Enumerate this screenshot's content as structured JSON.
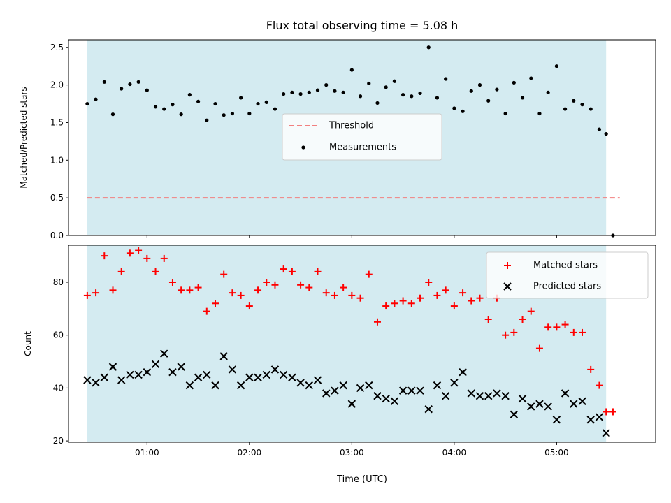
{
  "chart_data": [
    {
      "type": "scatter",
      "title": "Flux total observing time = 5.08 h",
      "ylabel": "Matched/Predicted stars",
      "xlabel": "",
      "ylim": [
        0,
        2.6
      ],
      "y_ticks": [
        0.0,
        0.5,
        1.0,
        1.5,
        2.0,
        2.5
      ],
      "y_tick_labels": [
        "0.0",
        "0.5",
        "1.0",
        "1.5",
        "2.0",
        "2.5"
      ],
      "legend": {
        "placement": "center",
        "entries": [
          "Threshold",
          "Measurements"
        ]
      },
      "threshold": {
        "name": "Threshold",
        "value": 0.5,
        "x_start": "00:25",
        "x_end": "05:37",
        "color": "#f28080"
      },
      "shaded_interval": {
        "start": "00:25",
        "end": "05:29",
        "color": "#d4ebf1"
      },
      "series": [
        {
          "name": "Measurements",
          "x": [
            "00:25",
            "00:30",
            "00:35",
            "00:40",
            "00:45",
            "00:50",
            "00:55",
            "01:00",
            "01:05",
            "01:10",
            "01:15",
            "01:20",
            "01:25",
            "01:30",
            "01:35",
            "01:40",
            "01:45",
            "01:50",
            "01:55",
            "02:00",
            "02:05",
            "02:10",
            "02:15",
            "02:20",
            "02:25",
            "02:30",
            "02:35",
            "02:40",
            "02:45",
            "02:50",
            "02:55",
            "03:00",
            "03:05",
            "03:10",
            "03:15",
            "03:20",
            "03:25",
            "03:30",
            "03:35",
            "03:40",
            "03:45",
            "03:50",
            "03:55",
            "04:00",
            "04:05",
            "04:10",
            "04:15",
            "04:20",
            "04:25",
            "04:30",
            "04:35",
            "04:40",
            "04:45",
            "04:50",
            "04:55",
            "05:00",
            "05:05",
            "05:10",
            "05:15",
            "05:20",
            "05:25",
            "05:29",
            "05:33"
          ],
          "y": [
            1.75,
            1.81,
            2.04,
            1.61,
            1.95,
            2.01,
            2.04,
            1.93,
            1.71,
            1.68,
            1.74,
            1.61,
            1.87,
            1.78,
            1.53,
            1.75,
            1.6,
            1.62,
            1.83,
            1.62,
            1.75,
            1.77,
            1.68,
            1.88,
            1.9,
            1.88,
            1.9,
            1.93,
            2.0,
            1.92,
            1.9,
            2.2,
            1.85,
            2.02,
            1.76,
            1.97,
            2.05,
            1.87,
            1.85,
            1.89,
            2.5,
            1.83,
            2.08,
            1.69,
            1.65,
            1.92,
            2.0,
            1.79,
            1.94,
            1.62,
            2.03,
            1.83,
            2.09,
            1.62,
            1.9,
            2.25,
            1.68,
            1.79,
            1.74,
            1.68,
            1.41,
            1.35,
            0.0
          ]
        }
      ]
    },
    {
      "type": "scatter",
      "title": "",
      "ylabel": "Count",
      "xlabel": "Time (UTC)",
      "ylim": [
        19.5,
        94
      ],
      "xlim": [
        "00:14",
        "05:58"
      ],
      "y_ticks": [
        20,
        40,
        60,
        80
      ],
      "y_tick_labels": [
        "20",
        "40",
        "60",
        "80"
      ],
      "x_ticks": [
        "01:00",
        "02:00",
        "03:00",
        "04:00",
        "05:00"
      ],
      "legend": {
        "placement": "top-right",
        "entries": [
          "Matched stars",
          "Predicted stars"
        ]
      },
      "shaded_interval": {
        "start": "00:25",
        "end": "05:29",
        "color": "#d4ebf1"
      },
      "series": [
        {
          "name": "Matched stars",
          "marker": "plus",
          "color": "#ff0000",
          "x": [
            "00:25",
            "00:30",
            "00:35",
            "00:40",
            "00:45",
            "00:50",
            "00:55",
            "01:00",
            "01:05",
            "01:10",
            "01:15",
            "01:20",
            "01:25",
            "01:30",
            "01:35",
            "01:40",
            "01:45",
            "01:50",
            "01:55",
            "02:00",
            "02:05",
            "02:10",
            "02:15",
            "02:20",
            "02:25",
            "02:30",
            "02:35",
            "02:40",
            "02:45",
            "02:50",
            "02:55",
            "03:00",
            "03:05",
            "03:10",
            "03:15",
            "03:20",
            "03:25",
            "03:30",
            "03:35",
            "03:40",
            "03:45",
            "03:50",
            "03:55",
            "04:00",
            "04:05",
            "04:10",
            "04:15",
            "04:20",
            "04:25",
            "04:30",
            "04:35",
            "04:40",
            "04:45",
            "04:50",
            "04:55",
            "05:00",
            "05:05",
            "05:10",
            "05:15",
            "05:20",
            "05:25",
            "05:29",
            "05:33"
          ],
          "y": [
            75,
            76,
            90,
            77,
            84,
            91,
            92,
            89,
            84,
            89,
            80,
            77,
            77,
            78,
            69,
            72,
            83,
            76,
            75,
            71,
            77,
            80,
            79,
            85,
            84,
            79,
            78,
            84,
            76,
            75,
            78,
            75,
            74,
            83,
            65,
            71,
            72,
            73,
            72,
            74,
            80,
            75,
            77,
            71,
            76,
            73,
            74,
            66,
            74,
            60,
            61,
            66,
            69,
            55,
            63,
            63,
            64,
            61,
            61,
            47,
            41,
            31,
            31
          ]
        },
        {
          "name": "Predicted stars",
          "marker": "x",
          "color": "#000000",
          "x": [
            "00:25",
            "00:30",
            "00:35",
            "00:40",
            "00:45",
            "00:50",
            "00:55",
            "01:00",
            "01:05",
            "01:10",
            "01:15",
            "01:20",
            "01:25",
            "01:30",
            "01:35",
            "01:40",
            "01:45",
            "01:50",
            "01:55",
            "02:00",
            "02:05",
            "02:10",
            "02:15",
            "02:20",
            "02:25",
            "02:30",
            "02:35",
            "02:40",
            "02:45",
            "02:50",
            "02:55",
            "03:00",
            "03:05",
            "03:10",
            "03:15",
            "03:20",
            "03:25",
            "03:30",
            "03:35",
            "03:40",
            "03:45",
            "03:50",
            "03:55",
            "04:00",
            "04:05",
            "04:10",
            "04:15",
            "04:20",
            "04:25",
            "04:30",
            "04:35",
            "04:40",
            "04:45",
            "04:50",
            "04:55",
            "05:00",
            "05:05",
            "05:10",
            "05:15",
            "05:20",
            "05:25",
            "05:29"
          ],
          "y": [
            43,
            42,
            44,
            48,
            43,
            45,
            45,
            46,
            49,
            53,
            46,
            48,
            41,
            44,
            45,
            41,
            52,
            47,
            41,
            44,
            44,
            45,
            47,
            45,
            44,
            42,
            41,
            43,
            38,
            39,
            41,
            34,
            40,
            41,
            37,
            36,
            35,
            39,
            39,
            39,
            32,
            41,
            37,
            42,
            46,
            38,
            37,
            37,
            38,
            37,
            30,
            36,
            33,
            34,
            33,
            28,
            38,
            34,
            35,
            28,
            29,
            23
          ]
        }
      ]
    }
  ]
}
